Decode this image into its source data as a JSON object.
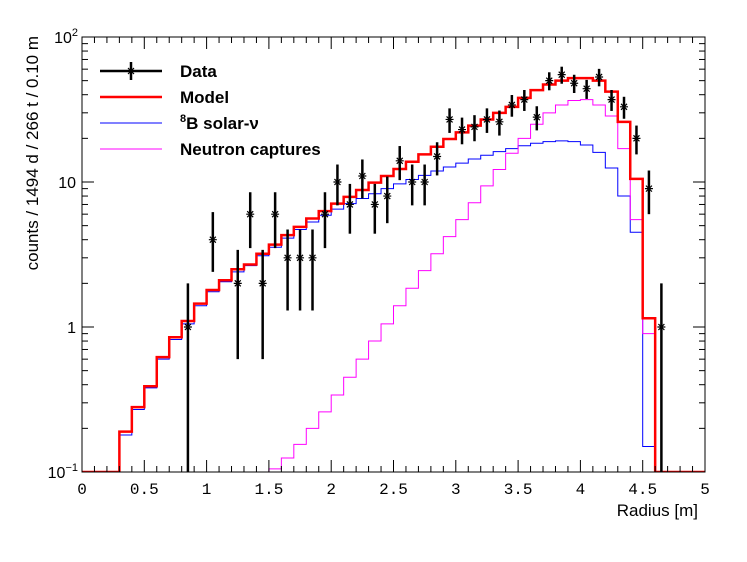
{
  "chart_data": {
    "type": "histogram",
    "xlabel": "Radius [m]",
    "ylabel": "counts / 1494 d / 266 t / 0.10 m",
    "xlim": [
      0,
      5
    ],
    "ylim": [
      0.1,
      100
    ],
    "yscale": "log",
    "x_tick_labels": [
      "0",
      "0.5",
      "1",
      "1.5",
      "2",
      "2.5",
      "3",
      "3.5",
      "4",
      "4.5",
      "5"
    ],
    "y_tick_labels": [
      {
        "value": 0.1,
        "base": "10",
        "exp": "−1"
      },
      {
        "value": 1,
        "base": "1",
        "exp": ""
      },
      {
        "value": 10,
        "base": "10",
        "exp": ""
      },
      {
        "value": 100,
        "base": "10",
        "exp": "2"
      }
    ],
    "legend": {
      "position": "top-left",
      "entries": [
        {
          "label": "Data",
          "prefix": "",
          "color": "#000000",
          "style": "marker"
        },
        {
          "label": "Model",
          "prefix": "",
          "color": "#ff0000",
          "style": "line-thick"
        },
        {
          "label": "B solar-ν",
          "prefix": "8",
          "color": "#0000ff",
          "style": "line"
        },
        {
          "label": "Neutron captures",
          "prefix": "",
          "color": "#ff00ff",
          "style": "line"
        }
      ]
    },
    "bin_width": 0.1,
    "bin_start": 0,
    "series": [
      {
        "name": "Model",
        "color": "#ff0000",
        "width": 2.5,
        "values": [
          0.1,
          0.1,
          0.1,
          0.19,
          0.28,
          0.39,
          0.62,
          0.85,
          1.1,
          1.45,
          1.8,
          2.1,
          2.5,
          2.7,
          3.2,
          3.7,
          4.3,
          4.9,
          5.6,
          6.3,
          7.1,
          7.9,
          8.8,
          9.9,
          11.0,
          12.3,
          13.8,
          15.5,
          17.5,
          19.8,
          22.0,
          24.5,
          27.0,
          30.0,
          33.0,
          38.0,
          43.0,
          47.0,
          50.0,
          52.0,
          52.0,
          50.0,
          42.0,
          26.0,
          10.5,
          1.15,
          0.1,
          0.1,
          0.1,
          0.1
        ]
      },
      {
        "name": "8B solar-nu",
        "color": "#0000ff",
        "width": 1,
        "values": [
          0.1,
          0.1,
          0.1,
          0.18,
          0.27,
          0.38,
          0.6,
          0.82,
          1.05,
          1.4,
          1.75,
          2.05,
          2.4,
          2.65,
          3.1,
          3.55,
          4.1,
          4.7,
          5.3,
          5.9,
          6.5,
          7.1,
          7.7,
          8.3,
          9.0,
          9.7,
          10.4,
          11.1,
          11.9,
          12.7,
          13.5,
          14.4,
          15.3,
          16.2,
          17.0,
          17.8,
          18.5,
          19.0,
          19.2,
          19.0,
          18.0,
          16.0,
          12.5,
          8.0,
          4.5,
          0.15,
          0.1,
          0.1,
          0.1,
          0.1
        ]
      },
      {
        "name": "Neutron captures",
        "color": "#ff00ff",
        "width": 1,
        "values": [
          0.1,
          0.1,
          0.1,
          0.1,
          0.1,
          0.1,
          0.1,
          0.1,
          0.1,
          0.1,
          0.1,
          0.1,
          0.1,
          0.1,
          0.1,
          0.105,
          0.125,
          0.155,
          0.2,
          0.26,
          0.34,
          0.45,
          0.6,
          0.8,
          1.05,
          1.4,
          1.85,
          2.45,
          3.2,
          4.2,
          5.5,
          7.2,
          9.4,
          12.2,
          15.8,
          20.0,
          25.0,
          30.0,
          34.0,
          36.5,
          37.0,
          34.0,
          28.5,
          17.0,
          5.5,
          0.9,
          0.1,
          0.1,
          0.1,
          0.1
        ]
      }
    ],
    "data_points": [
      {
        "x": 0.85,
        "y": 1,
        "lo": 0.1,
        "hi": 2.0
      },
      {
        "x": 1.05,
        "y": 4,
        "lo": 2.4,
        "hi": 6.2
      },
      {
        "x": 1.25,
        "y": 2,
        "lo": 0.6,
        "hi": 3.4
      },
      {
        "x": 1.35,
        "y": 6,
        "lo": 3.5,
        "hi": 8.5
      },
      {
        "x": 1.45,
        "y": 2,
        "lo": 0.6,
        "hi": 3.4
      },
      {
        "x": 1.55,
        "y": 6,
        "lo": 3.5,
        "hi": 8.5
      },
      {
        "x": 1.65,
        "y": 3,
        "lo": 1.3,
        "hi": 4.7
      },
      {
        "x": 1.75,
        "y": 3,
        "lo": 1.3,
        "hi": 4.7
      },
      {
        "x": 1.85,
        "y": 3,
        "lo": 1.3,
        "hi": 4.7
      },
      {
        "x": 1.95,
        "y": 6,
        "lo": 3.5,
        "hi": 8.5
      },
      {
        "x": 2.05,
        "y": 10,
        "lo": 6.9,
        "hi": 13.2
      },
      {
        "x": 2.15,
        "y": 7,
        "lo": 4.4,
        "hi": 9.7
      },
      {
        "x": 2.25,
        "y": 11,
        "lo": 7.7,
        "hi": 14.3
      },
      {
        "x": 2.35,
        "y": 7,
        "lo": 4.4,
        "hi": 9.7
      },
      {
        "x": 2.45,
        "y": 8,
        "lo": 5.2,
        "hi": 10.9
      },
      {
        "x": 2.55,
        "y": 14,
        "lo": 10.3,
        "hi": 17.7
      },
      {
        "x": 2.65,
        "y": 10,
        "lo": 6.9,
        "hi": 13.2
      },
      {
        "x": 2.75,
        "y": 10,
        "lo": 6.9,
        "hi": 13.2
      },
      {
        "x": 2.85,
        "y": 15,
        "lo": 11.1,
        "hi": 18.8
      },
      {
        "x": 2.95,
        "y": 27,
        "lo": 21.8,
        "hi": 32.2
      },
      {
        "x": 3.05,
        "y": 23,
        "lo": 18.2,
        "hi": 27.8
      },
      {
        "x": 3.15,
        "y": 24,
        "lo": 19.1,
        "hi": 28.9
      },
      {
        "x": 3.25,
        "y": 27,
        "lo": 21.8,
        "hi": 32.2
      },
      {
        "x": 3.35,
        "y": 26,
        "lo": 20.9,
        "hi": 31.1
      },
      {
        "x": 3.45,
        "y": 34,
        "lo": 28.2,
        "hi": 39.8
      },
      {
        "x": 3.55,
        "y": 37,
        "lo": 30.9,
        "hi": 43.1
      },
      {
        "x": 3.65,
        "y": 28,
        "lo": 22.7,
        "hi": 33.3
      },
      {
        "x": 3.75,
        "y": 50,
        "lo": 42.9,
        "hi": 57.1
      },
      {
        "x": 3.85,
        "y": 55,
        "lo": 47.6,
        "hi": 62.4
      },
      {
        "x": 3.95,
        "y": 48,
        "lo": 41.1,
        "hi": 54.9
      },
      {
        "x": 4.05,
        "y": 44,
        "lo": 37.4,
        "hi": 50.6
      },
      {
        "x": 4.15,
        "y": 53,
        "lo": 45.7,
        "hi": 60.3
      },
      {
        "x": 4.25,
        "y": 37,
        "lo": 30.9,
        "hi": 43.1
      },
      {
        "x": 4.35,
        "y": 33,
        "lo": 27.3,
        "hi": 38.7
      },
      {
        "x": 4.45,
        "y": 20,
        "lo": 15.5,
        "hi": 24.5
      },
      {
        "x": 4.55,
        "y": 9,
        "lo": 6.0,
        "hi": 12.0
      },
      {
        "x": 4.65,
        "y": 1,
        "lo": 0.1,
        "hi": 2.0
      }
    ]
  }
}
